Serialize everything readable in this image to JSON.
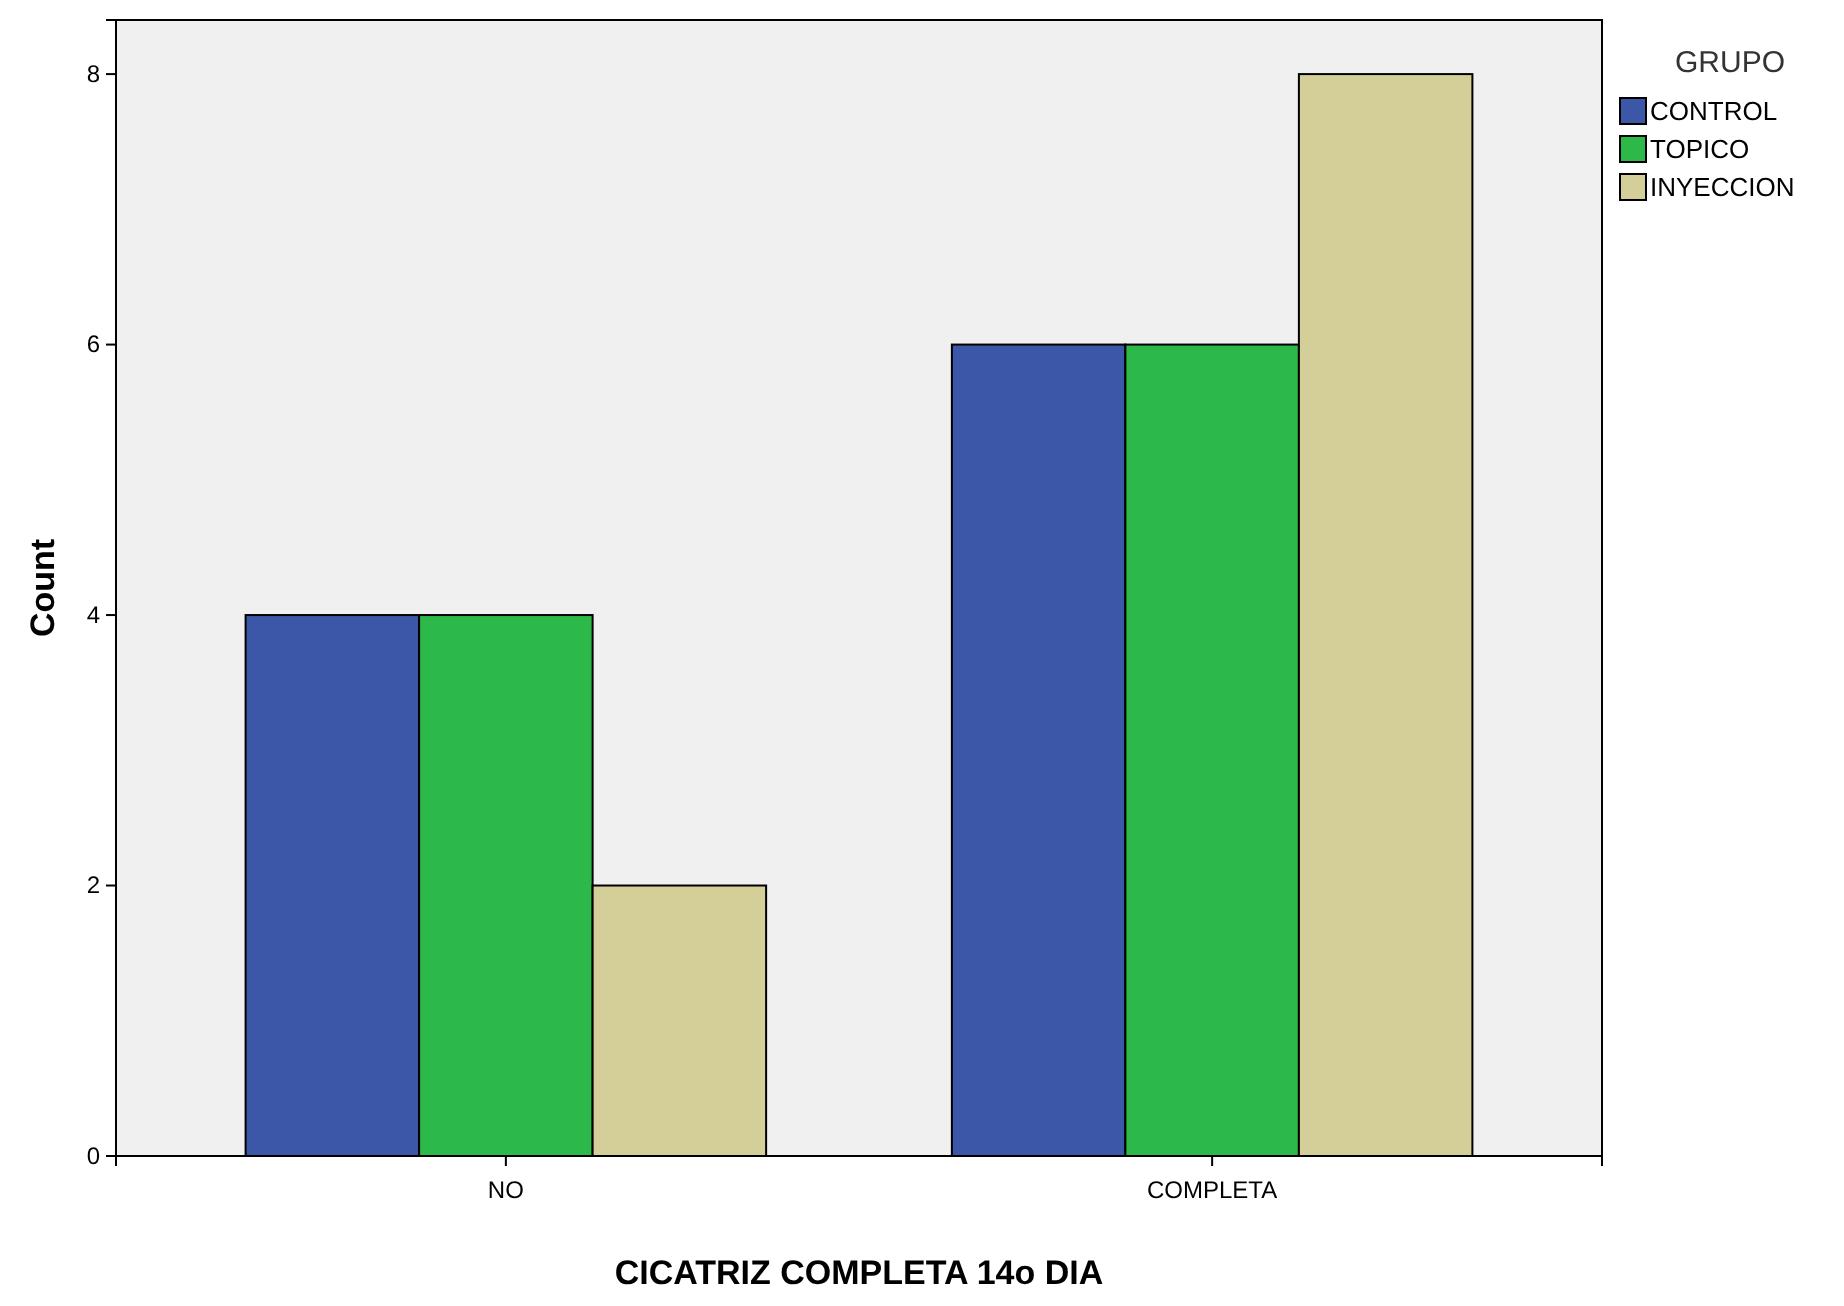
{
  "chart_data": {
    "type": "bar",
    "xlabel": "CICATRIZ COMPLETA 14o DIA",
    "ylabel": "Count",
    "legend_title": "GRUPO",
    "legend": "top right",
    "grid": false,
    "categories": [
      "NO",
      "COMPLETA"
    ],
    "series": [
      {
        "name": "CONTROL",
        "color": "#3c56a8",
        "values": [
          4,
          6
        ]
      },
      {
        "name": "TOPICO",
        "color": "#2db84a",
        "values": [
          4,
          6
        ]
      },
      {
        "name": "INYECCION",
        "color": "#d4cf98",
        "values": [
          2,
          8
        ]
      }
    ],
    "ylim": [
      0,
      8.4
    ],
    "yticks": [
      0,
      2,
      4,
      6,
      8
    ]
  }
}
